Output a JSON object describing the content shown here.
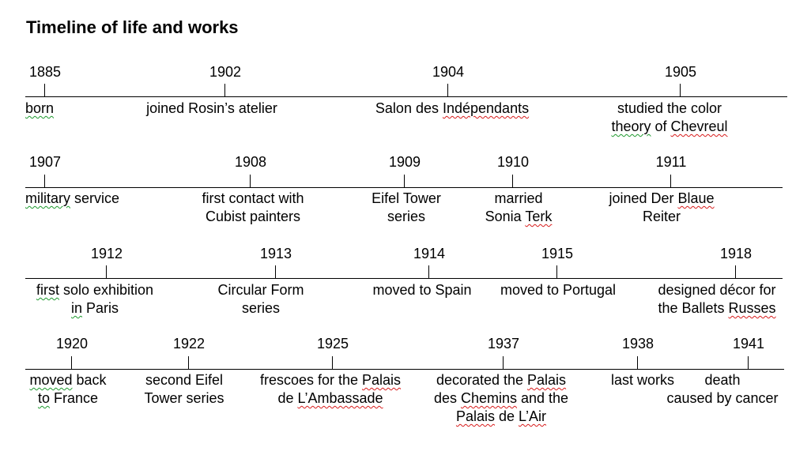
{
  "title": "Timeline of life and works",
  "rows": [
    {
      "events": [
        {
          "year": "1885",
          "lines": [
            [
              [
                "born",
                "g"
              ]
            ]
          ]
        },
        {
          "year": "1902",
          "lines": [
            [
              [
                "joined Rosin’s atelier",
                ""
              ]
            ]
          ]
        },
        {
          "year": "1904",
          "lines": [
            [
              [
                "Salon des ",
                ""
              ],
              [
                "Indépendants",
                "r"
              ]
            ]
          ]
        },
        {
          "year": "1905",
          "lines": [
            [
              [
                "studied the color",
                ""
              ]
            ],
            [
              [
                "theory",
                "g"
              ],
              [
                " of ",
                ""
              ],
              [
                "Chevreul",
                "r"
              ]
            ]
          ]
        }
      ]
    },
    {
      "events": [
        {
          "year": "1907",
          "lines": [
            [
              [
                "military",
                "g"
              ],
              [
                " service",
                ""
              ]
            ]
          ]
        },
        {
          "year": "1908",
          "lines": [
            [
              [
                "first contact with",
                ""
              ]
            ],
            [
              [
                "Cubist painters",
                ""
              ]
            ]
          ]
        },
        {
          "year": "1909",
          "lines": [
            [
              [
                "Eifel Tower",
                ""
              ]
            ],
            [
              [
                "series",
                ""
              ]
            ]
          ]
        },
        {
          "year": "1910",
          "lines": [
            [
              [
                "married",
                ""
              ]
            ],
            [
              [
                "Sonia ",
                ""
              ],
              [
                "Terk",
                "r"
              ]
            ]
          ]
        },
        {
          "year": "1911",
          "lines": [
            [
              [
                "joined Der ",
                ""
              ],
              [
                "Blaue",
                "r"
              ]
            ],
            [
              [
                "Reiter",
                ""
              ]
            ]
          ]
        }
      ]
    },
    {
      "events": [
        {
          "year": "1912",
          "lines": [
            [
              [
                "first",
                "g"
              ],
              [
                " solo exhibition",
                ""
              ]
            ],
            [
              [
                "in",
                "g"
              ],
              [
                " Paris",
                ""
              ]
            ]
          ]
        },
        {
          "year": "1913",
          "lines": [
            [
              [
                "Circular Form",
                ""
              ]
            ],
            [
              [
                "series",
                ""
              ]
            ]
          ]
        },
        {
          "year": "1914",
          "lines": [
            [
              [
                "moved to Spain",
                ""
              ]
            ]
          ]
        },
        {
          "year": "1915",
          "lines": [
            [
              [
                "moved to Portugal",
                ""
              ]
            ]
          ]
        },
        {
          "year": "1918",
          "lines": [
            [
              [
                "designed décor for",
                ""
              ]
            ],
            [
              [
                "the Ballets ",
                ""
              ],
              [
                "Russes",
                "r"
              ]
            ]
          ]
        }
      ]
    },
    {
      "events": [
        {
          "year": "1920",
          "lines": [
            [
              [
                "moved",
                "g"
              ],
              [
                " back",
                ""
              ]
            ],
            [
              [
                "to",
                "g"
              ],
              [
                " France",
                ""
              ]
            ]
          ]
        },
        {
          "year": "1922",
          "lines": [
            [
              [
                "second Eifel",
                ""
              ]
            ],
            [
              [
                "Tower series",
                ""
              ]
            ]
          ]
        },
        {
          "year": "1925",
          "lines": [
            [
              [
                "frescoes for the ",
                ""
              ],
              [
                "Palais",
                "r"
              ]
            ],
            [
              [
                "de ",
                ""
              ],
              [
                "L’Ambassade",
                "r"
              ]
            ]
          ]
        },
        {
          "year": "1937",
          "lines": [
            [
              [
                "decorated the ",
                ""
              ],
              [
                "Palais",
                "r"
              ]
            ],
            [
              [
                "des ",
                ""
              ],
              [
                "Chemins",
                "r"
              ],
              [
                " and the",
                ""
              ]
            ],
            [
              [
                "Palais",
                "r"
              ],
              [
                " de ",
                ""
              ],
              [
                "L’Air",
                "r"
              ]
            ]
          ]
        },
        {
          "year": "1938",
          "lines": [
            [
              [
                "last works",
                ""
              ]
            ]
          ]
        },
        {
          "year": "1941",
          "lines": [
            [
              [
                "death",
                ""
              ]
            ],
            [
              [
                "caused by cancer",
                ""
              ]
            ]
          ]
        }
      ]
    }
  ]
}
